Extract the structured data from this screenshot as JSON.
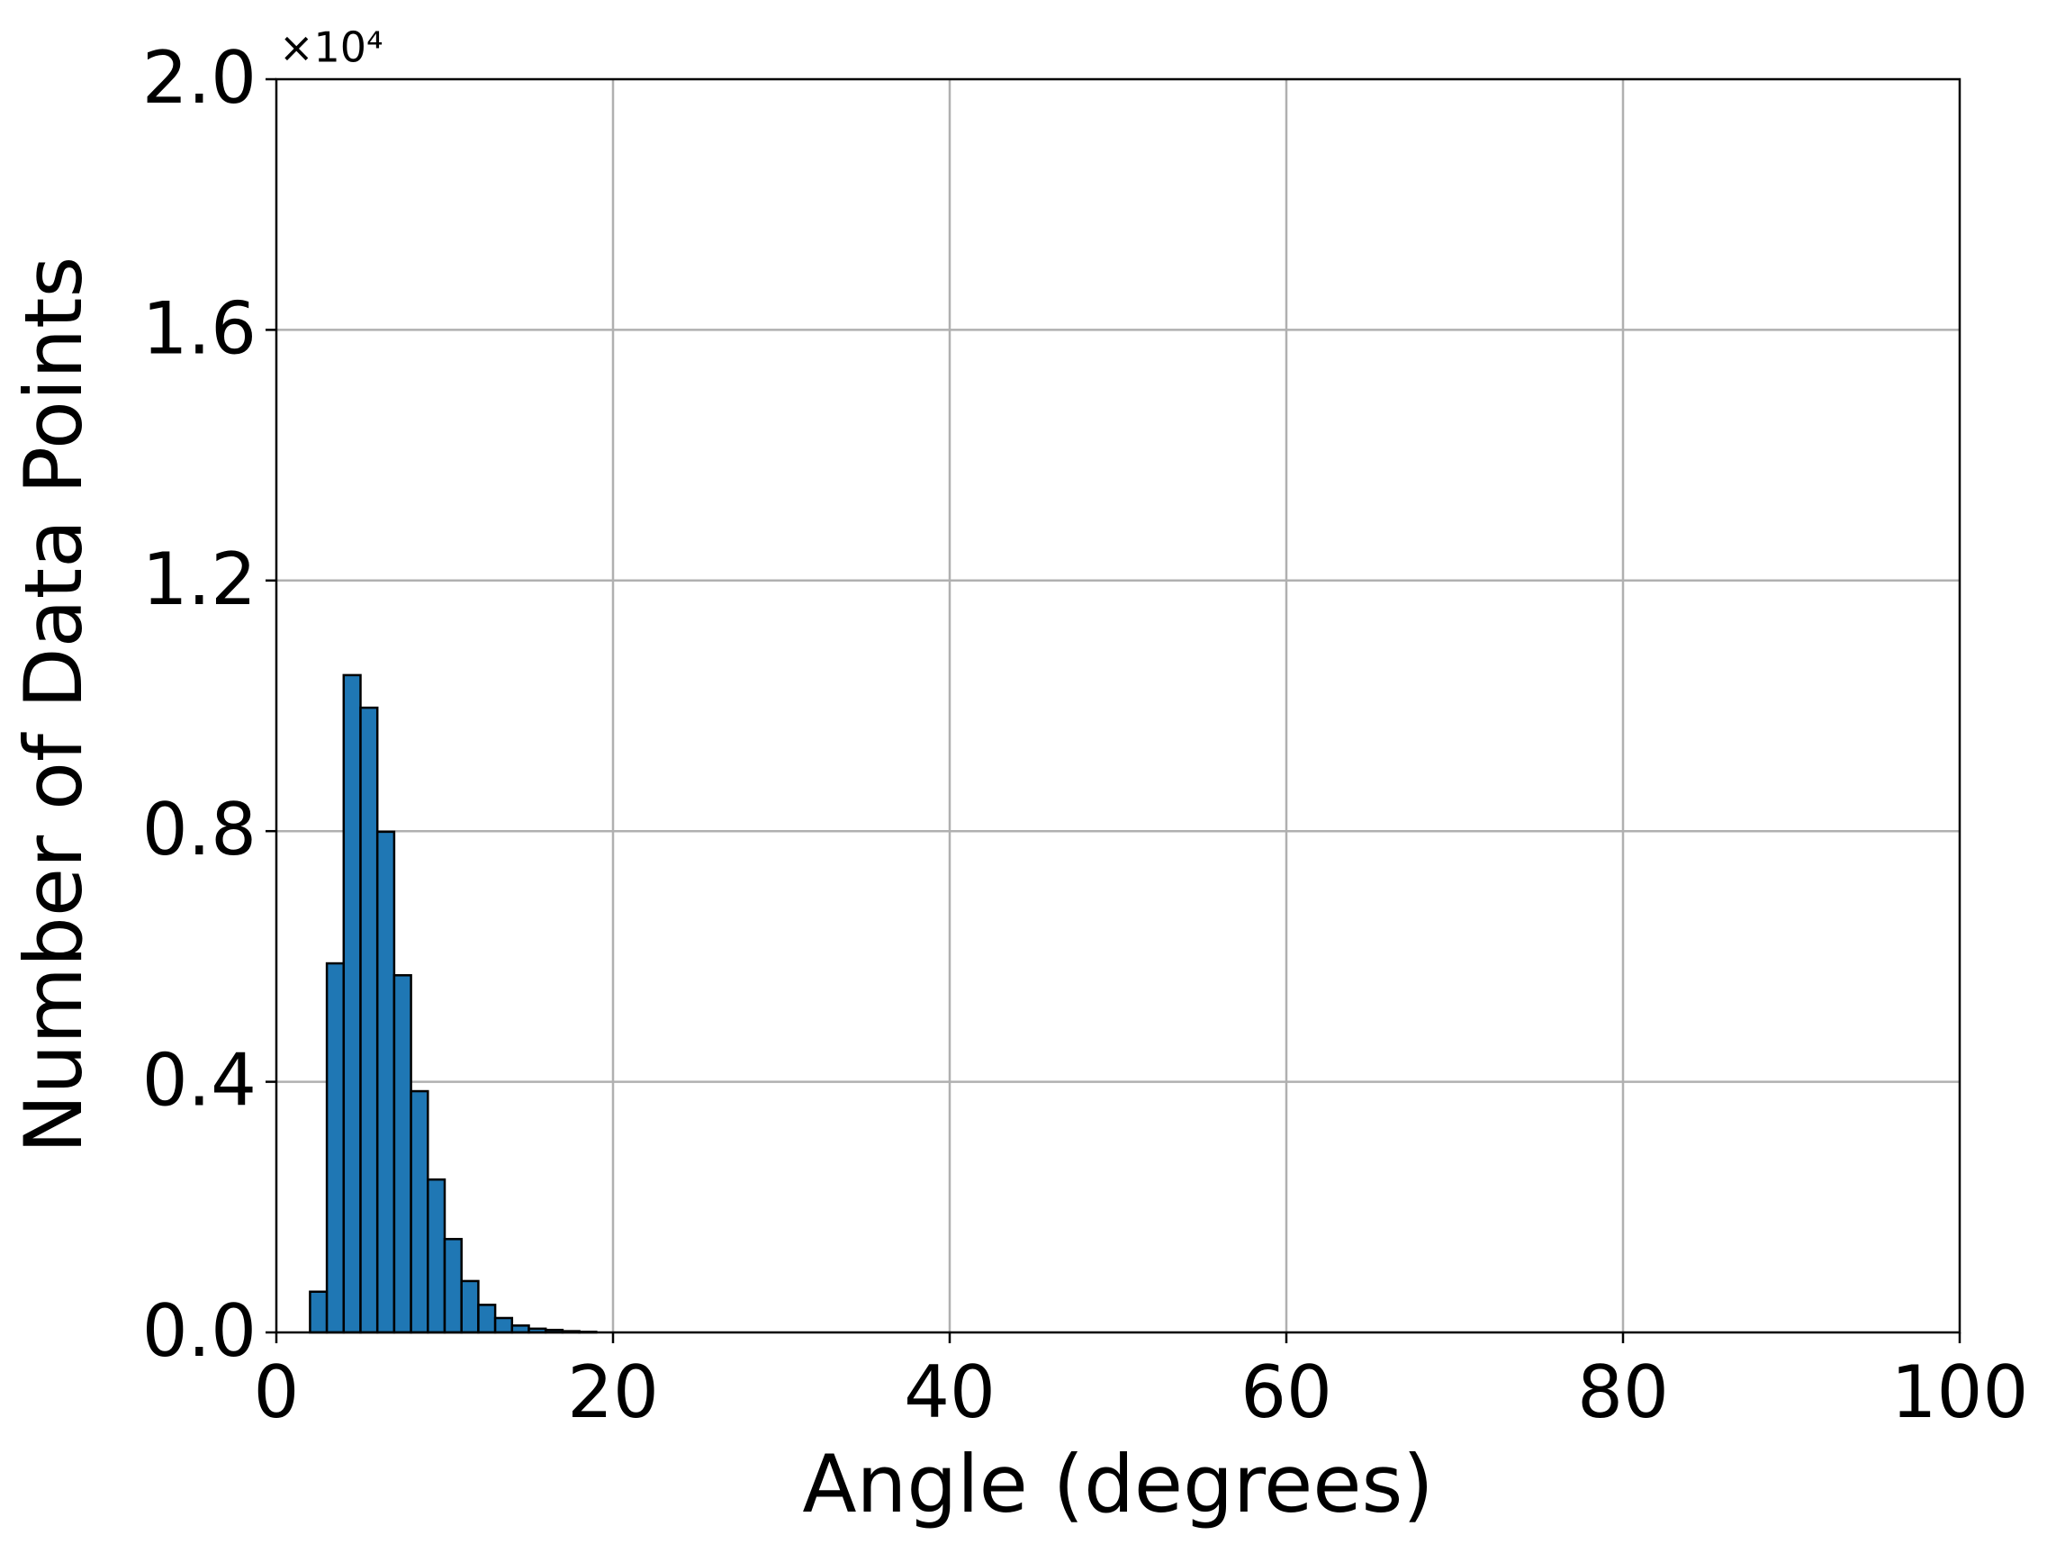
{
  "chart_data": {
    "type": "histogram",
    "x_label": "Angle (degrees)",
    "y_label": "Number of Data Points",
    "y_offset_label": "×10⁴",
    "bins": [
      0,
      1,
      2,
      3,
      4,
      5,
      6,
      7,
      8,
      9,
      10,
      11,
      12,
      13,
      14,
      15,
      16,
      17,
      18,
      19,
      20,
      21,
      22,
      23,
      24,
      25,
      26,
      27,
      28,
      29,
      30,
      31,
      32,
      33,
      34,
      35,
      36,
      37,
      38,
      39,
      40,
      41,
      42,
      43,
      44,
      45,
      46,
      47,
      48,
      49,
      50,
      51,
      52,
      53,
      54,
      55,
      56,
      57,
      58,
      59,
      60,
      61,
      62,
      63,
      64,
      65,
      66,
      67,
      68,
      69,
      70,
      71,
      72,
      73,
      74,
      75,
      76,
      77,
      78,
      79,
      80,
      81,
      82,
      83,
      84,
      85,
      86,
      87,
      88,
      89,
      90,
      91,
      92,
      93,
      94,
      95,
      96,
      97,
      98,
      99
    ],
    "values": [
      0,
      0,
      0.065,
      0.589,
      1.049,
      0.997,
      0.799,
      0.57,
      0.385,
      0.244,
      0.149,
      0.082,
      0.044,
      0.023,
      0.011,
      0.006,
      0.004,
      0.002,
      0.001,
      0,
      0,
      0,
      0,
      0,
      0,
      0,
      0,
      0,
      0,
      0,
      0,
      0,
      0,
      0,
      0,
      0,
      0,
      0,
      0,
      0,
      0,
      0,
      0,
      0,
      0,
      0,
      0,
      0,
      0,
      0,
      0,
      0,
      0,
      0,
      0,
      0,
      0,
      0,
      0,
      0,
      0,
      0,
      0,
      0,
      0,
      0,
      0,
      0,
      0,
      0,
      0,
      0,
      0,
      0,
      0,
      0,
      0,
      0,
      0,
      0,
      0,
      0,
      0,
      0,
      0,
      0,
      0,
      0,
      0,
      0,
      0,
      0,
      0,
      0,
      0,
      0,
      0,
      0,
      0
    ],
    "color": "#1f77b4",
    "edge_color": "#000000",
    "xlim": [
      0,
      100
    ],
    "xticks": [
      0,
      20,
      40,
      60,
      80,
      100
    ],
    "ylim": [
      0,
      2
    ],
    "yticks": [
      {
        "value": 0,
        "label": "0.0"
      },
      0.4,
      0.8,
      1.2,
      1.6,
      {
        "value": 2,
        "label": "2.0"
      }
    ],
    "grid": true
  }
}
